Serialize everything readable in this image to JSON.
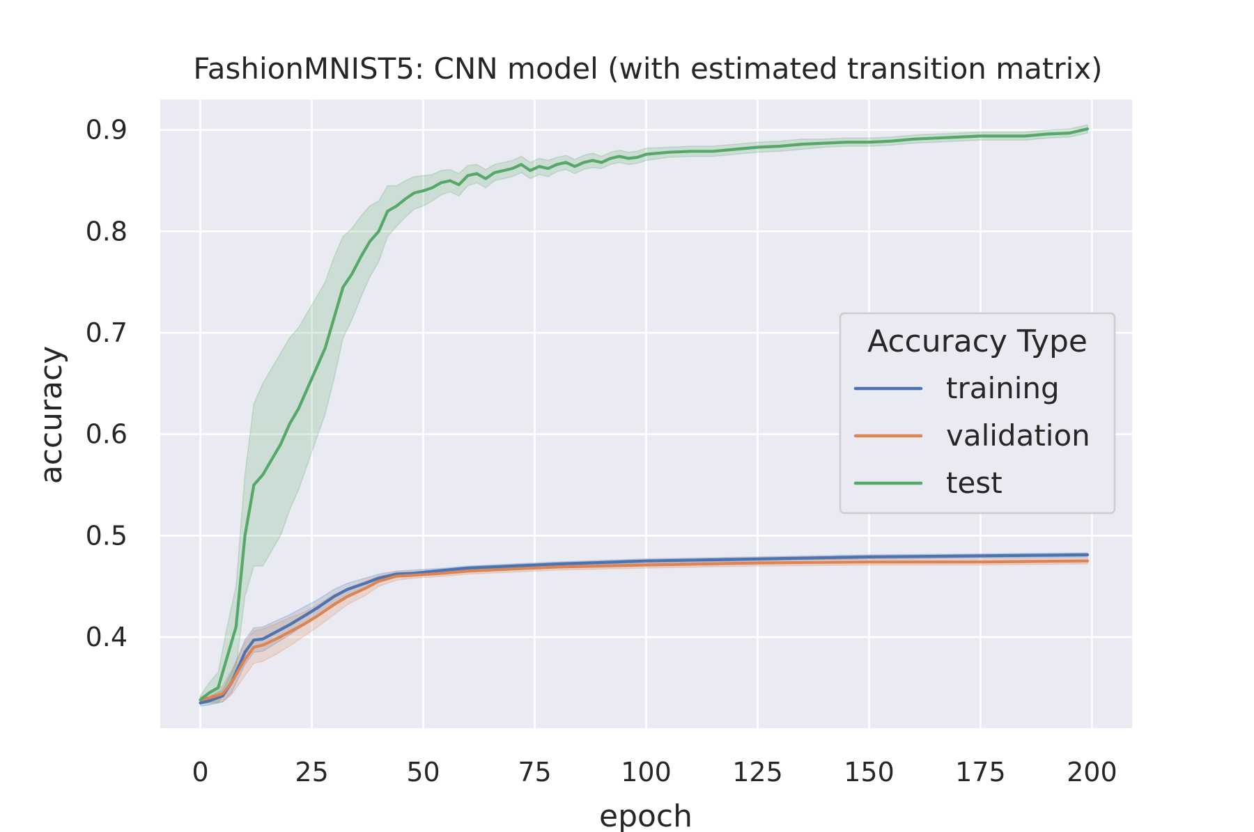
{
  "chart_data": {
    "type": "line",
    "title": "FashionMNIST5: CNN model (with estimated transition matrix)",
    "xlabel": "epoch",
    "ylabel": "accuracy",
    "xlim": [
      -9,
      209
    ],
    "ylim": [
      0.31,
      0.93
    ],
    "xticks": [
      0,
      25,
      50,
      75,
      100,
      125,
      150,
      175,
      200
    ],
    "yticks": [
      0.4,
      0.5,
      0.6,
      0.7,
      0.8,
      0.9
    ],
    "grid": true,
    "legend": {
      "title": "Accuracy Type",
      "placement": "center-right",
      "entries": [
        "training",
        "validation",
        "test"
      ]
    },
    "series": [
      {
        "name": "training",
        "color": "#4c72b0",
        "x": [
          0,
          2,
          5,
          7,
          10,
          12,
          14,
          17,
          20,
          23,
          26,
          30,
          33,
          37,
          40,
          44,
          48,
          55,
          60,
          70,
          80,
          100,
          125,
          150,
          175,
          199
        ],
        "values": [
          0.335,
          0.337,
          0.342,
          0.355,
          0.385,
          0.397,
          0.398,
          0.405,
          0.412,
          0.42,
          0.428,
          0.44,
          0.447,
          0.453,
          0.458,
          0.462,
          0.463,
          0.466,
          0.468,
          0.47,
          0.472,
          0.475,
          0.477,
          0.479,
          0.48,
          0.481
        ],
        "band_halfwidth": [
          0.003,
          0.004,
          0.006,
          0.01,
          0.012,
          0.012,
          0.012,
          0.011,
          0.01,
          0.009,
          0.008,
          0.007,
          0.006,
          0.005,
          0.004,
          0.003,
          0.003,
          0.002,
          0.002,
          0.002,
          0.002,
          0.002,
          0.002,
          0.002,
          0.002,
          0.002
        ]
      },
      {
        "name": "validation",
        "color": "#dd8452",
        "x": [
          0,
          2,
          5,
          7,
          10,
          12,
          14,
          17,
          20,
          23,
          26,
          30,
          33,
          37,
          40,
          44,
          48,
          55,
          60,
          70,
          80,
          100,
          125,
          150,
          175,
          199
        ],
        "values": [
          0.338,
          0.34,
          0.344,
          0.355,
          0.378,
          0.39,
          0.392,
          0.398,
          0.405,
          0.412,
          0.42,
          0.432,
          0.44,
          0.448,
          0.455,
          0.46,
          0.461,
          0.463,
          0.465,
          0.467,
          0.469,
          0.471,
          0.473,
          0.474,
          0.474,
          0.475
        ],
        "band_halfwidth": [
          0.003,
          0.004,
          0.008,
          0.012,
          0.016,
          0.016,
          0.016,
          0.015,
          0.014,
          0.012,
          0.011,
          0.01,
          0.008,
          0.007,
          0.005,
          0.004,
          0.003,
          0.003,
          0.003,
          0.003,
          0.003,
          0.003,
          0.003,
          0.003,
          0.003,
          0.003
        ]
      },
      {
        "name": "test",
        "color": "#55a868",
        "x": [
          0,
          2,
          4,
          6,
          8,
          10,
          12,
          14,
          16,
          18,
          20,
          22,
          24,
          26,
          28,
          30,
          32,
          34,
          36,
          38,
          40,
          42,
          44,
          46,
          48,
          50,
          52,
          54,
          56,
          58,
          60,
          62,
          64,
          66,
          68,
          70,
          72,
          74,
          76,
          78,
          80,
          82,
          84,
          86,
          88,
          90,
          92,
          94,
          96,
          98,
          100,
          105,
          110,
          115,
          120,
          125,
          130,
          135,
          140,
          145,
          150,
          155,
          160,
          165,
          170,
          175,
          180,
          185,
          190,
          195,
          199
        ],
        "values": [
          0.338,
          0.345,
          0.35,
          0.38,
          0.41,
          0.5,
          0.55,
          0.56,
          0.575,
          0.59,
          0.61,
          0.625,
          0.645,
          0.665,
          0.685,
          0.715,
          0.745,
          0.758,
          0.775,
          0.79,
          0.8,
          0.82,
          0.825,
          0.832,
          0.838,
          0.84,
          0.843,
          0.848,
          0.85,
          0.846,
          0.855,
          0.857,
          0.852,
          0.858,
          0.86,
          0.862,
          0.866,
          0.86,
          0.864,
          0.862,
          0.866,
          0.868,
          0.864,
          0.868,
          0.87,
          0.868,
          0.872,
          0.874,
          0.872,
          0.873,
          0.876,
          0.878,
          0.879,
          0.879,
          0.881,
          0.883,
          0.884,
          0.886,
          0.887,
          0.888,
          0.888,
          0.889,
          0.891,
          0.892,
          0.893,
          0.894,
          0.894,
          0.894,
          0.896,
          0.897,
          0.901
        ],
        "band_halfwidth": [
          0.004,
          0.01,
          0.015,
          0.03,
          0.04,
          0.06,
          0.08,
          0.09,
          0.09,
          0.09,
          0.085,
          0.08,
          0.075,
          0.07,
          0.065,
          0.06,
          0.05,
          0.045,
          0.04,
          0.035,
          0.03,
          0.025,
          0.02,
          0.018,
          0.016,
          0.015,
          0.013,
          0.012,
          0.011,
          0.011,
          0.01,
          0.009,
          0.009,
          0.008,
          0.008,
          0.008,
          0.008,
          0.008,
          0.008,
          0.008,
          0.007,
          0.007,
          0.007,
          0.007,
          0.007,
          0.006,
          0.006,
          0.006,
          0.006,
          0.006,
          0.006,
          0.005,
          0.005,
          0.005,
          0.005,
          0.005,
          0.005,
          0.005,
          0.004,
          0.004,
          0.004,
          0.004,
          0.004,
          0.004,
          0.004,
          0.004,
          0.004,
          0.004,
          0.004,
          0.004,
          0.004
        ]
      }
    ]
  }
}
